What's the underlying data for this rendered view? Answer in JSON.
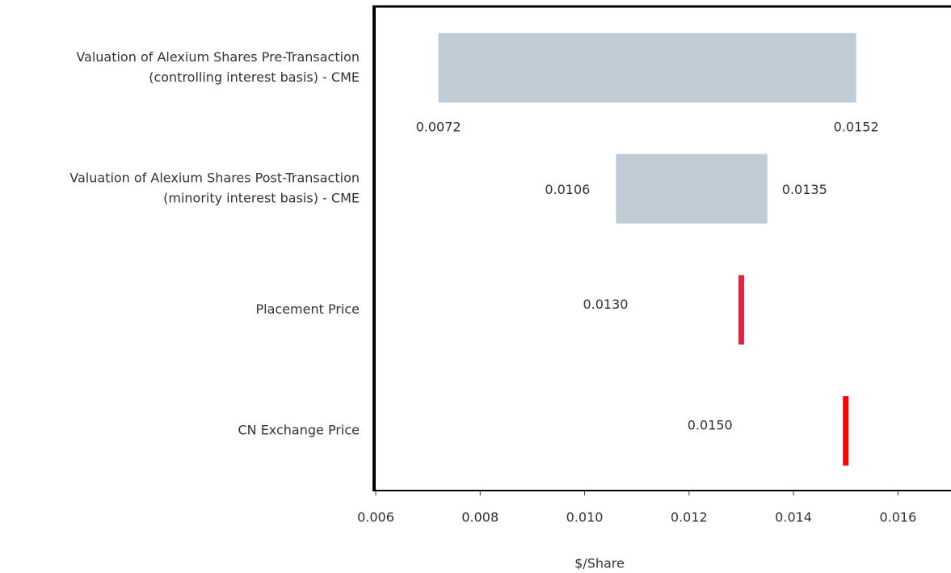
{
  "chart_data": {
    "type": "range",
    "categories": [
      [
        "Valuation of Alexium Shares Pre-Transaction",
        "(controlling interest basis) - CME"
      ],
      [
        "Valuation of Alexium Shares Post-Transaction",
        "(minority interest basis) - CME"
      ],
      [
        "Placement Price"
      ],
      [
        "CN Exchange Price"
      ]
    ],
    "low": [
      0.0072,
      0.0106,
      0.013,
      0.015
    ],
    "high": [
      0.0152,
      0.0135,
      null,
      null
    ],
    "low_labels": [
      "0.0072",
      "0.0106",
      "0.0130",
      "0.0150"
    ],
    "high_labels": [
      "0.0152",
      "0.0135",
      null,
      null
    ],
    "colors": [
      "#c0ccd5",
      "#c0ccd5",
      "#e8203f",
      "#ff0000"
    ],
    "xlabel": "$/Share",
    "xlim": [
      0.006,
      0.017
    ],
    "xticks": [
      0.006,
      0.008,
      {
        "value": 0.01,
        "label": "0.010"
      },
      0.012,
      0.014,
      0.016
    ]
  }
}
